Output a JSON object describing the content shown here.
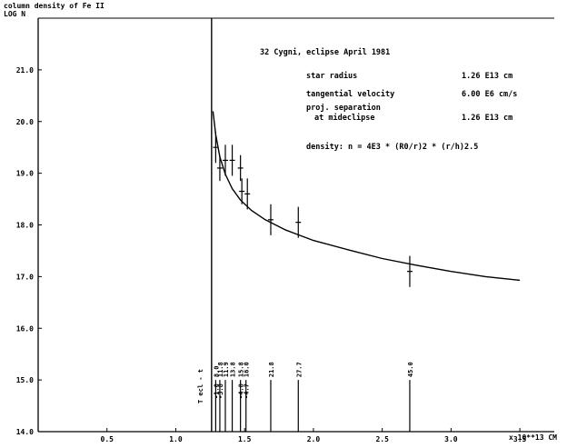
{
  "chart_data": {
    "type": "scatter",
    "title": "column density of Fe II",
    "ylabel": "LOG N",
    "xlabel": "x 10**13 CM",
    "xlim": [
      0,
      3.75
    ],
    "ylim": [
      14.0,
      22.0
    ],
    "x_ticks": [
      0.5,
      1.0,
      1.5,
      2.0,
      2.5,
      3.0,
      3.5
    ],
    "x_tick_labels": [
      "0.5",
      "1.0",
      "1.5",
      "2.0",
      "2.5",
      "3.0",
      "3.5"
    ],
    "y_ticks": [
      14.0,
      15.0,
      16.0,
      17.0,
      18.0,
      19.0,
      20.0,
      21.0
    ],
    "y_tick_labels": [
      "14.0",
      "15.0",
      "16.0",
      "17.0",
      "18.0",
      "19.0",
      "20.0",
      "21.0"
    ],
    "grid": false,
    "eclipse_line_x": 1.26,
    "eclipse_line_label": "T ecl - t",
    "series": [
      {
        "kind": "points",
        "x": [
          1.29,
          1.32,
          1.36,
          1.41,
          1.47,
          1.48,
          1.52,
          1.69,
          1.89,
          2.7
        ],
        "y": [
          19.5,
          19.1,
          19.25,
          19.25,
          19.1,
          18.65,
          18.6,
          18.1,
          18.05,
          17.1
        ],
        "yerr": [
          0.3,
          0.25,
          0.3,
          0.3,
          0.25,
          0.25,
          0.3,
          0.3,
          0.3,
          0.3
        ]
      },
      {
        "kind": "line",
        "formula": "n = 4E3 * (R0/r)^2 * (r/h)^2.5",
        "x": [
          1.27,
          1.29,
          1.32,
          1.36,
          1.41,
          1.47,
          1.55,
          1.65,
          1.8,
          2.0,
          2.25,
          2.5,
          2.75,
          3.0,
          3.25,
          3.5
        ],
        "y": [
          20.2,
          19.75,
          19.32,
          18.98,
          18.7,
          18.48,
          18.28,
          18.1,
          17.9,
          17.7,
          17.52,
          17.35,
          17.22,
          17.1,
          17.0,
          16.93
        ]
      }
    ],
    "day_markers": [
      {
        "x": 1.29,
        "top": "8.0",
        "bottom": "-1.0"
      },
      {
        "x": 1.32,
        "top": "11.8",
        "bottom": "-3.8"
      },
      {
        "x": 1.36,
        "top": "11.9",
        "bottom": ""
      },
      {
        "x": 1.41,
        "top": "13.8",
        "bottom": ""
      },
      {
        "x": 1.47,
        "top": "15.8",
        "bottom": "-4.8"
      },
      {
        "x": 1.51,
        "top": "16.0",
        "bottom": "-4.7"
      },
      {
        "x": 1.69,
        "top": "21.8",
        "bottom": ""
      },
      {
        "x": 1.89,
        "top": "27.7",
        "bottom": ""
      },
      {
        "x": 2.7,
        "top": "45.0",
        "bottom": ""
      }
    ],
    "annotations": {
      "heading": "32 Cygni, eclipse April 1981",
      "rows": [
        {
          "label": "star radius",
          "value": "1.26 E13 cm"
        },
        {
          "label": "tangential velocity",
          "value": "6.00 E6 cm/s"
        },
        {
          "label": "proj. separation",
          "value": ""
        },
        {
          "label": "at mideclipse",
          "value": "1.26 E13 cm"
        }
      ],
      "density_text": "density:  n = 4E3 * (R0/r)2 * (r/h)2.5"
    }
  }
}
